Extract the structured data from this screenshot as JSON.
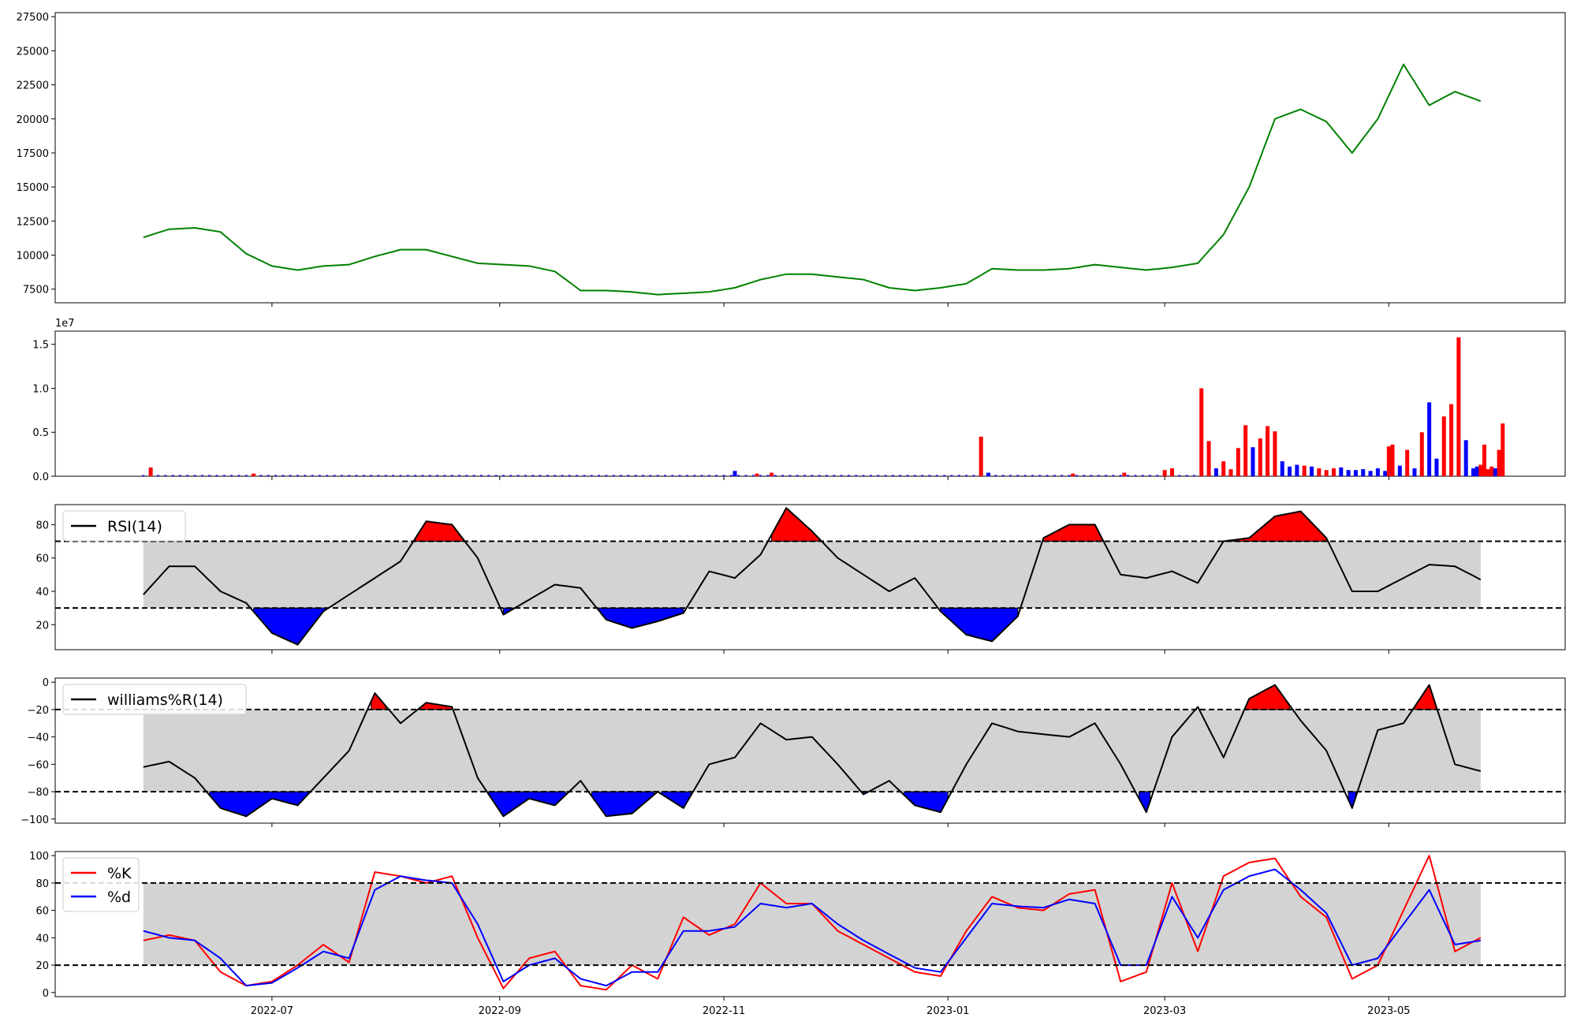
{
  "chart_data": [
    {
      "panel": "price",
      "type": "line",
      "color": "#008000",
      "ylim": [
        6500,
        27800
      ],
      "yticks": [
        7500,
        10000,
        12500,
        15000,
        17500,
        20000,
        22500,
        25000,
        27500
      ],
      "ytick_labels": [
        "7500",
        "10000",
        "12500",
        "15000",
        "17500",
        "20000",
        "22500",
        "25000",
        "27500"
      ],
      "x": [
        "2022-05-27",
        "2022-06-03",
        "2022-06-10",
        "2022-06-17",
        "2022-06-24",
        "2022-07-01",
        "2022-07-08",
        "2022-07-15",
        "2022-07-22",
        "2022-07-29",
        "2022-08-05",
        "2022-08-12",
        "2022-08-19",
        "2022-08-26",
        "2022-09-02",
        "2022-09-09",
        "2022-09-16",
        "2022-09-23",
        "2022-09-30",
        "2022-10-07",
        "2022-10-14",
        "2022-10-21",
        "2022-10-28",
        "2022-11-04",
        "2022-11-11",
        "2022-11-18",
        "2022-11-25",
        "2022-12-02",
        "2022-12-09",
        "2022-12-16",
        "2022-12-23",
        "2022-12-30",
        "2023-01-06",
        "2023-01-13",
        "2023-01-20",
        "2023-01-27",
        "2023-02-03",
        "2023-02-10",
        "2023-02-17",
        "2023-02-24",
        "2023-03-03",
        "2023-03-10",
        "2023-03-17",
        "2023-03-24",
        "2023-03-31",
        "2023-04-07",
        "2023-04-14",
        "2023-04-21",
        "2023-04-28",
        "2023-05-05",
        "2023-05-12",
        "2023-05-19",
        "2023-05-26"
      ],
      "values": [
        11300,
        11900,
        12000,
        11700,
        10100,
        9200,
        8900,
        9200,
        9300,
        9900,
        10400,
        10400,
        9900,
        9400,
        9300,
        9200,
        8800,
        7400,
        7400,
        7300,
        7100,
        7200,
        7300,
        7600,
        8200,
        8600,
        8600,
        8400,
        8200,
        7600,
        7400,
        7600,
        7900,
        9000,
        8900,
        8900,
        9000,
        9300,
        9100,
        8900,
        9100,
        9400,
        11500,
        15000,
        20000,
        20700,
        19800,
        17500,
        20000,
        24000,
        21000,
        22000,
        21300
      ]
    },
    {
      "panel": "volume",
      "type": "bar",
      "multiplier_label": "1e7",
      "up_color": "#ff0000",
      "down_color": "#0000ff",
      "ylim": [
        0,
        16500000
      ],
      "yticks": [
        0,
        5000000,
        10000000,
        15000000
      ],
      "ytick_labels": [
        "0.0",
        "0.5",
        "1.0",
        "1.5"
      ],
      "bars": [
        {
          "date": "2022-05-29",
          "value": 1000000,
          "dir": "up"
        },
        {
          "date": "2022-06-26",
          "value": 300000,
          "dir": "up"
        },
        {
          "date": "2022-11-04",
          "value": 600000,
          "dir": "down"
        },
        {
          "date": "2022-11-10",
          "value": 300000,
          "dir": "up"
        },
        {
          "date": "2022-11-14",
          "value": 400000,
          "dir": "up"
        },
        {
          "date": "2023-01-10",
          "value": 4500000,
          "dir": "up"
        },
        {
          "date": "2023-01-12",
          "value": 400000,
          "dir": "down"
        },
        {
          "date": "2023-02-04",
          "value": 300000,
          "dir": "up"
        },
        {
          "date": "2023-02-18",
          "value": 400000,
          "dir": "up"
        },
        {
          "date": "2023-03-01",
          "value": 700000,
          "dir": "up"
        },
        {
          "date": "2023-03-03",
          "value": 900000,
          "dir": "up"
        },
        {
          "date": "2023-03-11",
          "value": 10000000,
          "dir": "up"
        },
        {
          "date": "2023-03-13",
          "value": 4000000,
          "dir": "up"
        },
        {
          "date": "2023-03-15",
          "value": 900000,
          "dir": "down"
        },
        {
          "date": "2023-03-17",
          "value": 1700000,
          "dir": "up"
        },
        {
          "date": "2023-03-19",
          "value": 800000,
          "dir": "up"
        },
        {
          "date": "2023-03-21",
          "value": 3200000,
          "dir": "up"
        },
        {
          "date": "2023-03-23",
          "value": 5800000,
          "dir": "up"
        },
        {
          "date": "2023-03-25",
          "value": 3300000,
          "dir": "down"
        },
        {
          "date": "2023-03-27",
          "value": 4300000,
          "dir": "up"
        },
        {
          "date": "2023-03-29",
          "value": 5700000,
          "dir": "up"
        },
        {
          "date": "2023-03-31",
          "value": 5100000,
          "dir": "up"
        },
        {
          "date": "2023-04-02",
          "value": 1700000,
          "dir": "down"
        },
        {
          "date": "2023-04-04",
          "value": 1100000,
          "dir": "down"
        },
        {
          "date": "2023-04-06",
          "value": 1300000,
          "dir": "down"
        },
        {
          "date": "2023-04-08",
          "value": 1200000,
          "dir": "up"
        },
        {
          "date": "2023-04-10",
          "value": 1100000,
          "dir": "down"
        },
        {
          "date": "2023-04-12",
          "value": 900000,
          "dir": "up"
        },
        {
          "date": "2023-04-14",
          "value": 700000,
          "dir": "up"
        },
        {
          "date": "2023-04-16",
          "value": 900000,
          "dir": "up"
        },
        {
          "date": "2023-04-18",
          "value": 1000000,
          "dir": "down"
        },
        {
          "date": "2023-04-20",
          "value": 700000,
          "dir": "down"
        },
        {
          "date": "2023-04-22",
          "value": 700000,
          "dir": "down"
        },
        {
          "date": "2023-04-24",
          "value": 800000,
          "dir": "down"
        },
        {
          "date": "2023-04-26",
          "value": 600000,
          "dir": "down"
        },
        {
          "date": "2023-04-28",
          "value": 900000,
          "dir": "down"
        },
        {
          "date": "2023-04-30",
          "value": 600000,
          "dir": "down"
        },
        {
          "date": "2023-05-01",
          "value": 3400000,
          "dir": "up"
        },
        {
          "date": "2023-05-02",
          "value": 3600000,
          "dir": "up"
        },
        {
          "date": "2023-05-04",
          "value": 1200000,
          "dir": "down"
        },
        {
          "date": "2023-05-06",
          "value": 3000000,
          "dir": "up"
        },
        {
          "date": "2023-05-08",
          "value": 900000,
          "dir": "down"
        },
        {
          "date": "2023-05-10",
          "value": 5000000,
          "dir": "up"
        },
        {
          "date": "2023-05-12",
          "value": 8400000,
          "dir": "down"
        },
        {
          "date": "2023-05-14",
          "value": 2000000,
          "dir": "down"
        },
        {
          "date": "2023-05-16",
          "value": 6800000,
          "dir": "up"
        },
        {
          "date": "2023-05-18",
          "value": 8200000,
          "dir": "up"
        },
        {
          "date": "2023-05-20",
          "value": 15800000,
          "dir": "up"
        },
        {
          "date": "2023-05-22",
          "value": 4100000,
          "dir": "down"
        },
        {
          "date": "2023-05-24",
          "value": 900000,
          "dir": "down"
        },
        {
          "date": "2023-05-25",
          "value": 1100000,
          "dir": "down"
        },
        {
          "date": "2023-05-26",
          "value": 1300000,
          "dir": "up"
        },
        {
          "date": "2023-05-27",
          "value": 3600000,
          "dir": "up"
        },
        {
          "date": "2023-05-28",
          "value": 800000,
          "dir": "up"
        },
        {
          "date": "2023-05-29",
          "value": 1100000,
          "dir": "up"
        },
        {
          "date": "2023-05-30",
          "value": 900000,
          "dir": "down"
        },
        {
          "date": "2023-05-31",
          "value": 3000000,
          "dir": "up"
        },
        {
          "date": "2023-06-01",
          "value": 6000000,
          "dir": "up"
        }
      ]
    },
    {
      "panel": "rsi",
      "type": "line",
      "legend": "RSI(14)",
      "ylim": [
        5,
        92
      ],
      "yticks": [
        20,
        40,
        60,
        80
      ],
      "ytick_labels": [
        "20",
        "40",
        "60",
        "80"
      ],
      "band": [
        30,
        70
      ],
      "overbought_color": "#ff0000",
      "oversold_color": "#0000ff",
      "band_color": "#d3d3d3",
      "x": [
        "2022-05-27",
        "2022-06-03",
        "2022-06-10",
        "2022-06-17",
        "2022-06-24",
        "2022-07-01",
        "2022-07-08",
        "2022-07-15",
        "2022-07-22",
        "2022-07-29",
        "2022-08-05",
        "2022-08-12",
        "2022-08-19",
        "2022-08-26",
        "2022-09-02",
        "2022-09-09",
        "2022-09-16",
        "2022-09-23",
        "2022-09-30",
        "2022-10-07",
        "2022-10-14",
        "2022-10-21",
        "2022-10-28",
        "2022-11-04",
        "2022-11-11",
        "2022-11-18",
        "2022-11-25",
        "2022-12-02",
        "2022-12-09",
        "2022-12-16",
        "2022-12-23",
        "2022-12-30",
        "2023-01-06",
        "2023-01-13",
        "2023-01-20",
        "2023-01-27",
        "2023-02-03",
        "2023-02-10",
        "2023-02-17",
        "2023-02-24",
        "2023-03-03",
        "2023-03-10",
        "2023-03-17",
        "2023-03-24",
        "2023-03-31",
        "2023-04-07",
        "2023-04-14",
        "2023-04-21",
        "2023-04-28",
        "2023-05-05",
        "2023-05-12",
        "2023-05-19",
        "2023-05-26"
      ],
      "values": [
        38,
        55,
        55,
        40,
        33,
        15,
        8,
        28,
        38,
        48,
        58,
        82,
        80,
        60,
        26,
        35,
        44,
        42,
        23,
        18,
        22,
        27,
        52,
        48,
        62,
        90,
        76,
        60,
        50,
        40,
        48,
        28,
        14,
        10,
        25,
        72,
        80,
        80,
        50,
        48,
        52,
        45,
        70,
        72,
        85,
        88,
        72,
        40,
        40,
        48,
        56,
        55,
        47
      ]
    },
    {
      "panel": "williams",
      "type": "line",
      "legend": "williams%R(14)",
      "ylim": [
        -103,
        3
      ],
      "yticks": [
        -100,
        -80,
        -60,
        -40,
        -20,
        0
      ],
      "ytick_labels": [
        "−100",
        "−80",
        "−60",
        "−40",
        "−20",
        "0"
      ],
      "band": [
        -80,
        -20
      ],
      "overbought_color": "#ff0000",
      "oversold_color": "#0000ff",
      "band_color": "#d3d3d3",
      "x": [
        "2022-05-27",
        "2022-06-03",
        "2022-06-10",
        "2022-06-17",
        "2022-06-24",
        "2022-07-01",
        "2022-07-08",
        "2022-07-15",
        "2022-07-22",
        "2022-07-29",
        "2022-08-05",
        "2022-08-12",
        "2022-08-19",
        "2022-08-26",
        "2022-09-02",
        "2022-09-09",
        "2022-09-16",
        "2022-09-23",
        "2022-09-30",
        "2022-10-07",
        "2022-10-14",
        "2022-10-21",
        "2022-10-28",
        "2022-11-04",
        "2022-11-11",
        "2022-11-18",
        "2022-11-25",
        "2022-12-02",
        "2022-12-09",
        "2022-12-16",
        "2022-12-23",
        "2022-12-30",
        "2023-01-06",
        "2023-01-13",
        "2023-01-20",
        "2023-01-27",
        "2023-02-03",
        "2023-02-10",
        "2023-02-17",
        "2023-02-24",
        "2023-03-03",
        "2023-03-10",
        "2023-03-17",
        "2023-03-24",
        "2023-03-31",
        "2023-04-07",
        "2023-04-14",
        "2023-04-21",
        "2023-04-28",
        "2023-05-05",
        "2023-05-12",
        "2023-05-19",
        "2023-05-26"
      ],
      "values": [
        -62,
        -58,
        -70,
        -92,
        -98,
        -85,
        -90,
        -70,
        -50,
        -8,
        -30,
        -15,
        -18,
        -70,
        -98,
        -85,
        -90,
        -72,
        -98,
        -96,
        -80,
        -92,
        -60,
        -55,
        -30,
        -42,
        -40,
        -60,
        -82,
        -72,
        -90,
        -95,
        -60,
        -30,
        -36,
        -38,
        -40,
        -30,
        -60,
        -95,
        -40,
        -18,
        -55,
        -12,
        -2,
        -28,
        -50,
        -92,
        -35,
        -30,
        -2,
        -60,
        -65
      ]
    },
    {
      "panel": "stochastic",
      "type": "line",
      "ylim": [
        -3,
        103
      ],
      "yticks": [
        0,
        20,
        40,
        60,
        80,
        100
      ],
      "ytick_labels": [
        "0",
        "20",
        "40",
        "60",
        "80",
        "100"
      ],
      "band": [
        20,
        80
      ],
      "band_color": "#d3d3d3",
      "x": [
        "2022-05-27",
        "2022-06-03",
        "2022-06-10",
        "2022-06-17",
        "2022-06-24",
        "2022-07-01",
        "2022-07-08",
        "2022-07-15",
        "2022-07-22",
        "2022-07-29",
        "2022-08-05",
        "2022-08-12",
        "2022-08-19",
        "2022-08-26",
        "2022-09-02",
        "2022-09-09",
        "2022-09-16",
        "2022-09-23",
        "2022-09-30",
        "2022-10-07",
        "2022-10-14",
        "2022-10-21",
        "2022-10-28",
        "2022-11-04",
        "2022-11-11",
        "2022-11-18",
        "2022-11-25",
        "2022-12-02",
        "2022-12-09",
        "2022-12-16",
        "2022-12-23",
        "2022-12-30",
        "2023-01-06",
        "2023-01-13",
        "2023-01-20",
        "2023-01-27",
        "2023-02-03",
        "2023-02-10",
        "2023-02-17",
        "2023-02-24",
        "2023-03-03",
        "2023-03-10",
        "2023-03-17",
        "2023-03-24",
        "2023-03-31",
        "2023-04-07",
        "2023-04-14",
        "2023-04-21",
        "2023-04-28",
        "2023-05-05",
        "2023-05-12",
        "2023-05-19",
        "2023-05-26"
      ],
      "series": [
        {
          "name": "%K",
          "color": "#ff0000",
          "values": [
            38,
            42,
            38,
            15,
            5,
            8,
            20,
            35,
            22,
            88,
            85,
            80,
            85,
            40,
            3,
            25,
            30,
            5,
            2,
            20,
            10,
            55,
            42,
            50,
            80,
            65,
            65,
            45,
            35,
            25,
            15,
            12,
            45,
            70,
            62,
            60,
            72,
            75,
            8,
            15,
            80,
            30,
            85,
            95,
            98,
            70,
            55,
            10,
            20,
            60,
            100,
            30,
            40
          ]
        },
        {
          "name": "%d",
          "color": "#0000ff",
          "values": [
            45,
            40,
            38,
            25,
            5,
            7,
            18,
            30,
            25,
            75,
            85,
            82,
            80,
            50,
            8,
            20,
            25,
            10,
            5,
            15,
            15,
            45,
            45,
            48,
            65,
            62,
            65,
            50,
            38,
            28,
            18,
            15,
            40,
            65,
            63,
            62,
            68,
            65,
            20,
            20,
            70,
            40,
            75,
            85,
            90,
            75,
            58,
            20,
            25,
            50,
            75,
            35,
            38
          ]
        }
      ]
    }
  ],
  "x_axis": {
    "ticks": [
      "2022-07-01",
      "2022-09-01",
      "2022-11-01",
      "2023-01-01",
      "2023-03-01",
      "2023-05-01"
    ],
    "tick_labels": [
      "2022-07",
      "2022-09",
      "2022-11",
      "2023-01",
      "2023-03",
      "2023-05"
    ]
  }
}
